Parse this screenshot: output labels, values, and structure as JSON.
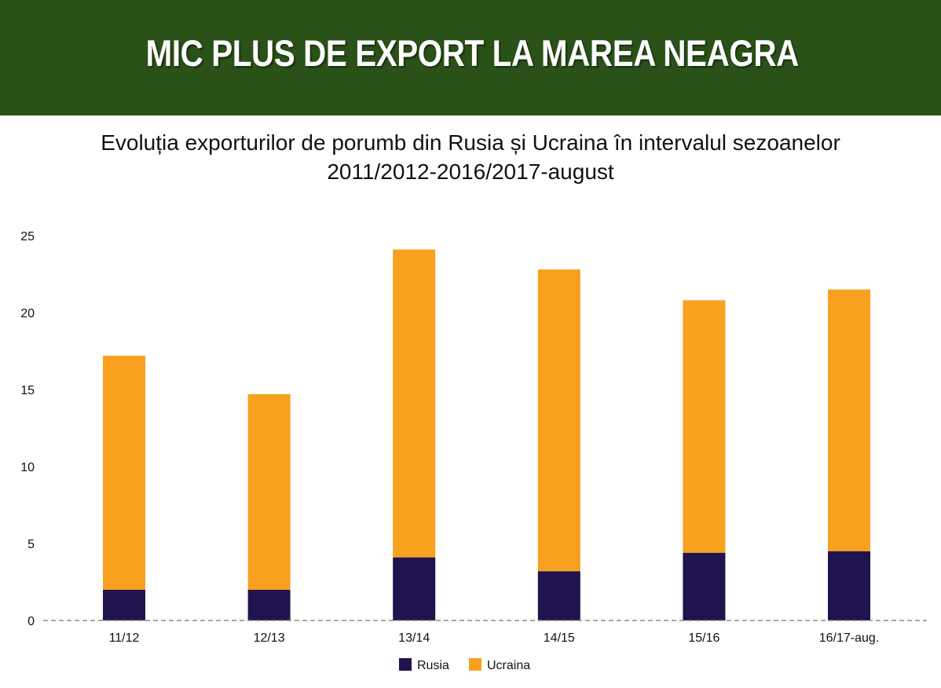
{
  "header": {
    "title": "MIC PLUS DE EXPORT LA MAREA NEAGRA"
  },
  "subtitle": {
    "line1": "Evoluția exporturilor de porumb din Rusia și Ucraina în intervalul sezoanelor",
    "line2": "2011/2012-2016/2017-august"
  },
  "chart_data": {
    "type": "bar",
    "stacked": true,
    "categories": [
      "11/12",
      "12/13",
      "13/14",
      "14/15",
      "15/16",
      "16/17-aug."
    ],
    "series": [
      {
        "name": "Rusia",
        "color": "#21134d",
        "values": [
          2.0,
          2.0,
          4.1,
          3.2,
          4.4,
          4.5
        ]
      },
      {
        "name": "Ucraina",
        "color": "#f7a11f",
        "values": [
          15.2,
          12.7,
          20.0,
          19.6,
          16.4,
          17.0
        ]
      }
    ],
    "ylim": [
      0,
      25
    ],
    "yticks": [
      0,
      5,
      10,
      15,
      20,
      25
    ],
    "grid": false,
    "legend_position": "bottom-center",
    "xlabel": "",
    "ylabel": ""
  }
}
